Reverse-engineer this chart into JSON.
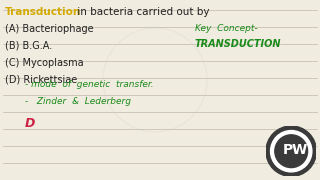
{
  "bg_color": "#f0ece0",
  "line_color": "#c0b8a8",
  "title_word1": "Transduction",
  "title_word2": " in bacteria carried out by",
  "title_color1": "#d4aa00",
  "title_color2": "#222222",
  "options": [
    "(A) Bacteriophage",
    "(B) B.G.A.",
    "(C) Mycoplasma",
    "(D) Rickettsiae"
  ],
  "option_color": "#222222",
  "key_concept_line1": "Key  Concept-",
  "key_concept_line2": "TRANSDUCTION",
  "key_concept_color": "#1a8a1a",
  "note_line1": "- mode  of  genetic  transfer.",
  "note_line2": "-   Zinder  &  Lederberg",
  "note_color": "#1a8a1a",
  "answer": "D",
  "answer_color": "#cc2244"
}
